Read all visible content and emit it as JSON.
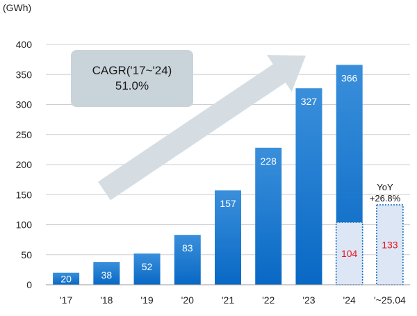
{
  "chart_data": {
    "type": "bar",
    "ylabel": "(GWh)",
    "ylim": [
      0,
      400
    ],
    "yticks": [
      "0",
      "50",
      "100",
      "150",
      "200",
      "250",
      "300",
      "350",
      "400"
    ],
    "categories": [
      "'17",
      "'18",
      "'19",
      "'20",
      "'21",
      "'22",
      "'23",
      "'24",
      "'~25.04"
    ],
    "values": [
      20,
      38,
      52,
      83,
      157,
      228,
      327,
      366,
      133
    ],
    "data_labels": [
      "20",
      "38",
      "52",
      "83",
      "157",
      "228",
      "327",
      "366",
      "133"
    ],
    "highlight_segments": [
      {
        "category": "'24",
        "value": 104,
        "label": "104"
      },
      {
        "category": "'~25.04",
        "value": 133,
        "label": "133"
      }
    ],
    "grid": true,
    "annotations": {
      "cagr_line1": "CAGR('17~'24)",
      "cagr_line2": "51.0%",
      "yoy_line1": "YoY",
      "yoy_line2": "+26.8%"
    },
    "colors": {
      "bar_top": "#3a8fdb",
      "bar_bottom": "#0868c4",
      "highlight_fill": "#dde6f4",
      "highlight_border": "#1a73c8",
      "highlight_text": "#e8141e",
      "arrow": "#d5dde3",
      "grid": "#cfcfcf"
    }
  }
}
